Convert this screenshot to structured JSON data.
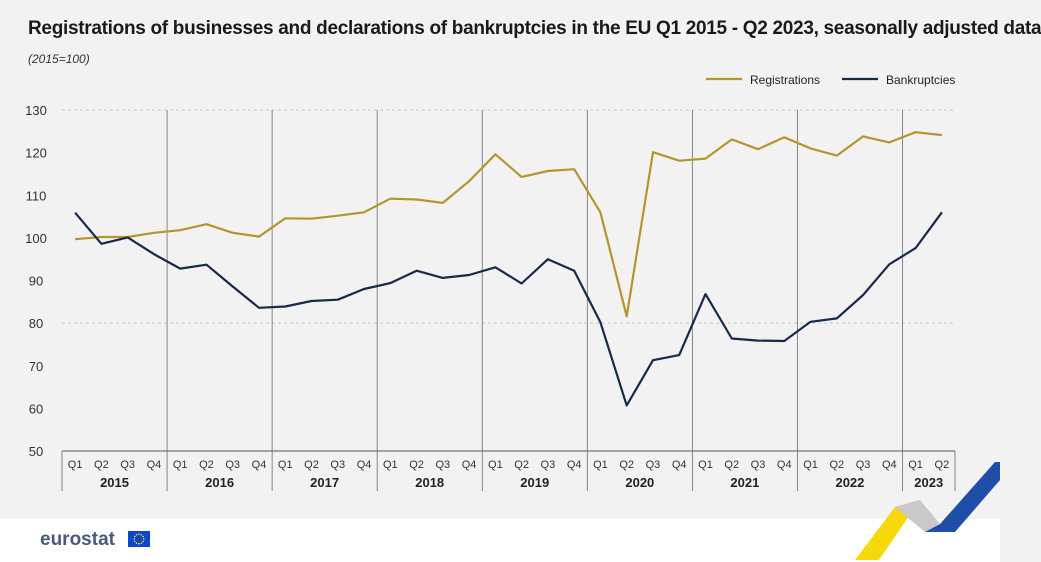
{
  "title": "Registrations of businesses and declarations of bankruptcies in the EU Q1 2015 - Q2 2023, seasonally adjusted data",
  "subtitle": "(2015=100)",
  "logo": "eurostat",
  "colors": {
    "registrations": "#b5952e",
    "bankruptcies": "#162a4a",
    "grid": "#c8c8c8",
    "axis": "#555555"
  },
  "chart_data": {
    "type": "line",
    "ylim": [
      50,
      130
    ],
    "yticks": [
      50,
      60,
      70,
      80,
      90,
      100,
      110,
      120,
      130
    ],
    "grid": "dashed at 80 and 130",
    "legend_position": "top-right",
    "quarters": [
      "Q1",
      "Q2",
      "Q3",
      "Q4",
      "Q1",
      "Q2",
      "Q3",
      "Q4",
      "Q1",
      "Q2",
      "Q3",
      "Q4",
      "Q1",
      "Q2",
      "Q3",
      "Q4",
      "Q1",
      "Q2",
      "Q3",
      "Q4",
      "Q1",
      "Q2",
      "Q3",
      "Q4",
      "Q1",
      "Q2",
      "Q3",
      "Q4",
      "Q1",
      "Q2",
      "Q3",
      "Q4",
      "Q1",
      "Q2"
    ],
    "years": [
      "2015",
      "2016",
      "2017",
      "2018",
      "2019",
      "2020",
      "2021",
      "2022",
      "2023"
    ],
    "series": [
      {
        "name": "Registrations",
        "color": "#b5952e",
        "values": [
          99.7,
          100.2,
          100.2,
          101.2,
          101.8,
          103.2,
          101.2,
          100.3,
          104.6,
          104.5,
          105.2,
          106.0,
          109.2,
          109.0,
          108.2,
          113.3,
          119.6,
          114.3,
          115.7,
          116.1,
          106.0,
          81.6,
          120.1,
          118.1,
          118.6,
          123.1,
          120.8,
          123.6,
          121.0,
          119.3,
          123.8,
          122.4,
          124.8,
          124.1
        ]
      },
      {
        "name": "Bankruptcies",
        "color": "#162a4a",
        "values": [
          105.9,
          98.6,
          100.1,
          96.2,
          92.8,
          93.7,
          88.6,
          83.6,
          83.9,
          85.2,
          85.5,
          88.0,
          89.4,
          92.3,
          90.6,
          91.3,
          93.1,
          89.3,
          95.0,
          92.3,
          80.2,
          60.7,
          71.3,
          72.5,
          86.8,
          76.4,
          75.9,
          75.8,
          80.3,
          81.1,
          86.6,
          93.8,
          97.6,
          106.0
        ]
      }
    ]
  }
}
